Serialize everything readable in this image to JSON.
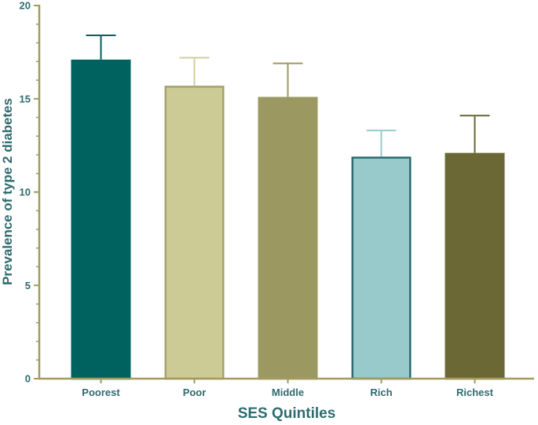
{
  "chart_data": {
    "type": "bar",
    "title": "",
    "xlabel": "SES Quintiles",
    "ylabel": "Prevalence of type 2 diabetes",
    "categories": [
      "Poorest",
      "Poor",
      "Middle",
      "Rich",
      "Richest"
    ],
    "values": [
      17.1,
      15.7,
      15.1,
      11.9,
      12.1
    ],
    "error_upper": [
      1.3,
      1.5,
      1.8,
      1.4,
      2.0
    ],
    "ylim": [
      0,
      20
    ],
    "yticks": [
      0,
      5,
      10,
      15,
      20
    ],
    "grid": false,
    "error_bars": "upper only",
    "colors": {
      "axis": "#a39a5c",
      "label_text": "#2e6b6e",
      "bar_fills": [
        "#00625f",
        "#ccca95",
        "#9c9862",
        "#98cacb",
        "#6c6835"
      ],
      "bar_strokes": [
        "#00625f",
        "#a6a26a",
        "#9c9862",
        "#2d6a72",
        "#6c6835"
      ],
      "error_bar_strokes": [
        "#00625f",
        "#d2cf9c",
        "#9c9862",
        "#98cacb",
        "#6c6835"
      ]
    }
  }
}
